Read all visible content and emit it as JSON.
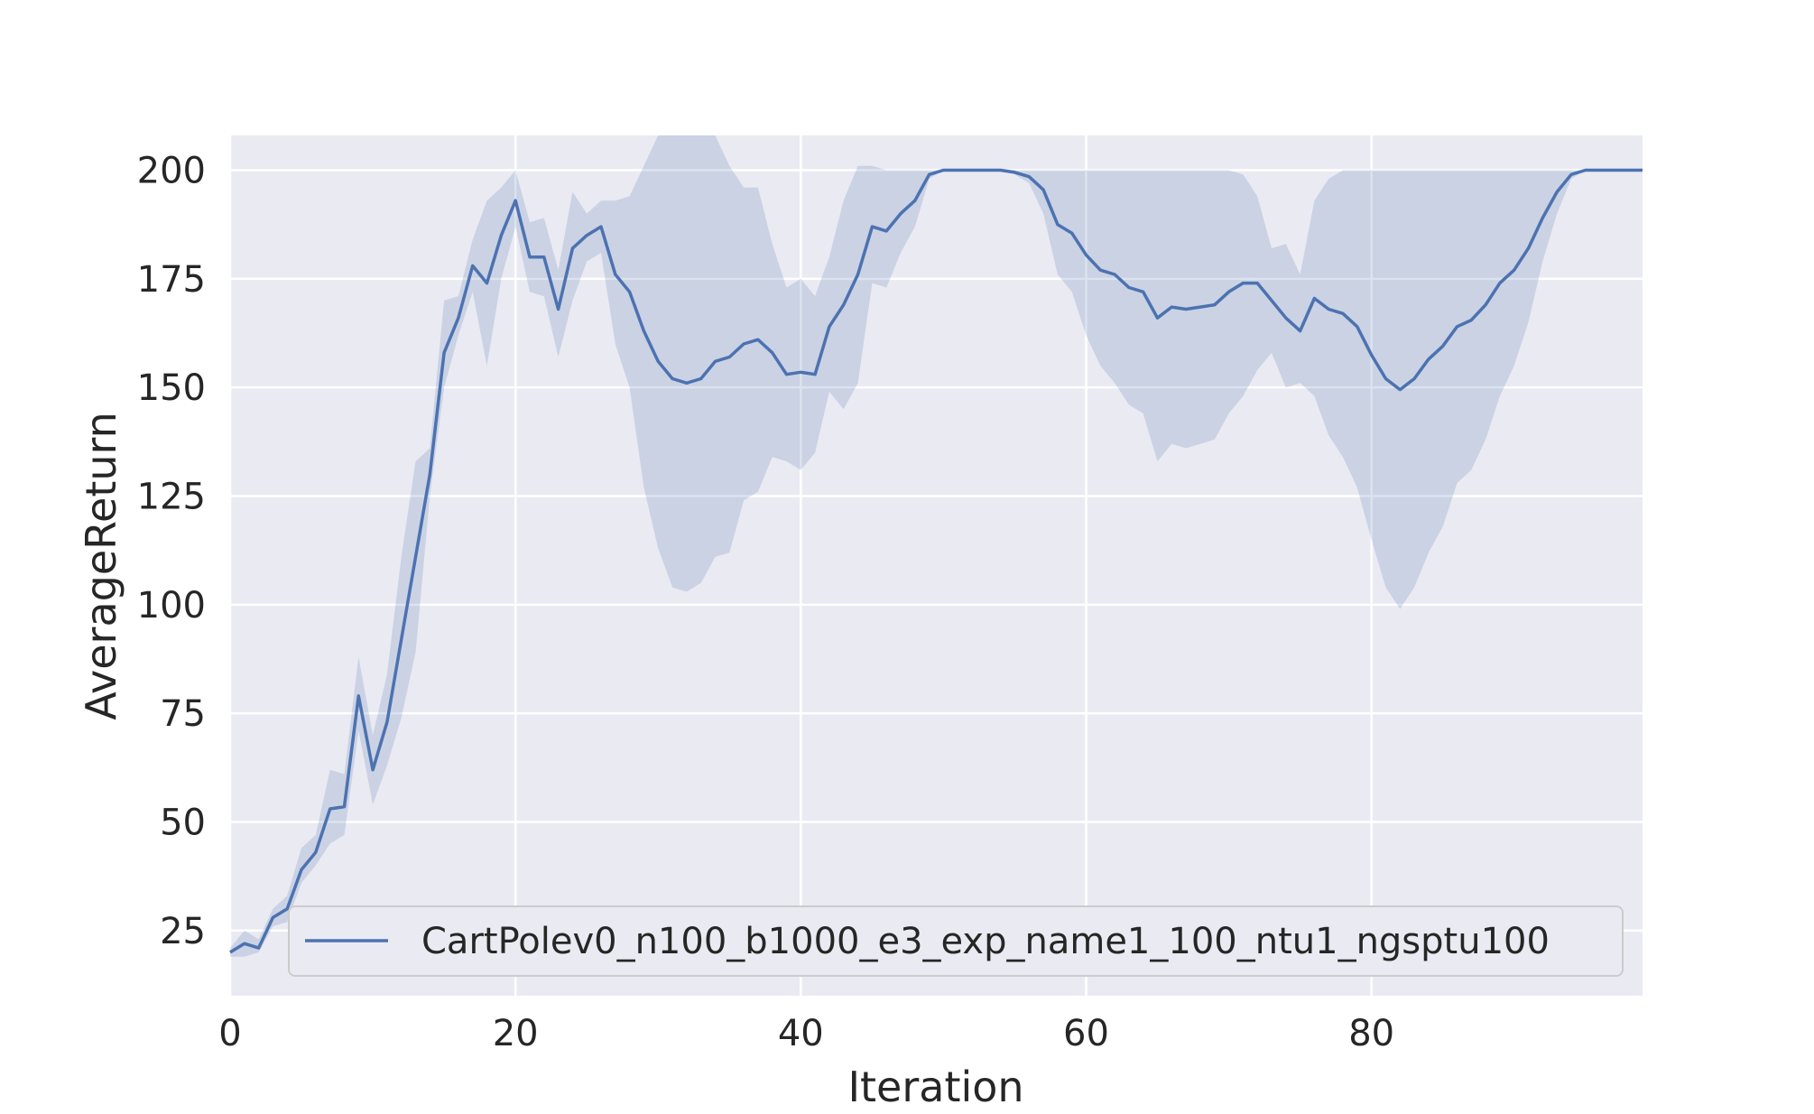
{
  "chart_data": {
    "type": "line",
    "xlabel": "Iteration",
    "ylabel": "AverageReturn",
    "xlim": [
      0,
      99
    ],
    "ylim": [
      10,
      208
    ],
    "xticks": [
      0,
      20,
      40,
      60,
      80
    ],
    "yticks": [
      25,
      50,
      75,
      100,
      125,
      150,
      175,
      200
    ],
    "grid": true,
    "legend_position": "lower-right",
    "colors": {
      "line": "#4c72b0",
      "band": "#4c72b0",
      "plot_bg": "#eaeaf2",
      "grid": "#ffffff"
    },
    "series": [
      {
        "name": "CartPolev0_n100_b1000_e3_exp_name1_100_ntu1_ngsptu100",
        "x": [
          0,
          1,
          2,
          3,
          4,
          5,
          6,
          7,
          8,
          9,
          10,
          11,
          12,
          13,
          14,
          15,
          16,
          17,
          18,
          19,
          20,
          21,
          22,
          23,
          24,
          25,
          26,
          27,
          28,
          29,
          30,
          31,
          32,
          33,
          34,
          35,
          36,
          37,
          38,
          39,
          40,
          41,
          42,
          43,
          44,
          45,
          46,
          47,
          48,
          49,
          50,
          51,
          52,
          53,
          54,
          55,
          56,
          57,
          58,
          59,
          60,
          61,
          62,
          63,
          64,
          65,
          66,
          67,
          68,
          69,
          70,
          71,
          72,
          73,
          74,
          75,
          76,
          77,
          78,
          79,
          80,
          81,
          82,
          83,
          84,
          85,
          86,
          87,
          88,
          89,
          90,
          91,
          92,
          93,
          94,
          95,
          96,
          97,
          98,
          99
        ],
        "y": [
          20,
          22,
          21,
          28,
          30,
          39,
          43,
          53,
          53.5,
          79,
          62,
          73,
          92,
          111,
          130,
          158,
          166,
          178,
          174,
          185,
          193,
          180,
          180,
          168,
          182,
          185,
          187,
          176,
          172,
          163,
          156,
          152,
          151,
          152,
          156,
          157,
          160,
          161,
          158,
          153,
          153.5,
          153,
          164,
          169,
          176,
          187,
          186,
          190,
          193,
          199,
          200,
          200,
          200,
          200,
          200,
          199.5,
          198.5,
          195.5,
          187.5,
          185.5,
          180.5,
          177,
          176,
          173,
          172,
          166,
          168.5,
          168,
          168.5,
          169,
          172,
          174,
          174,
          170,
          166,
          163,
          170.5,
          168,
          167,
          164,
          157.5,
          152,
          149.5,
          152,
          156.5,
          159.5,
          164,
          165.5,
          169,
          174,
          177,
          182,
          189,
          195,
          199,
          200,
          200,
          200,
          200,
          200
        ],
        "lower": [
          19,
          19,
          20,
          26,
          27,
          36,
          40,
          45,
          47,
          71,
          54,
          63,
          74,
          89,
          125,
          150,
          162,
          172,
          155,
          175,
          187,
          172,
          171,
          157,
          170,
          179,
          181,
          160,
          150,
          127,
          113,
          104,
          103,
          105,
          111,
          112,
          124,
          126,
          134,
          133,
          131,
          135,
          149,
          145,
          151,
          174,
          173,
          181,
          187,
          198,
          200,
          200,
          200,
          200,
          200,
          199,
          197,
          190,
          176,
          172,
          162,
          155,
          151,
          146,
          144,
          133,
          137,
          136,
          137,
          138,
          144,
          148,
          154,
          158,
          150,
          151,
          148,
          139,
          134,
          127,
          115,
          104,
          99,
          104,
          112,
          118,
          128,
          131,
          138,
          148,
          155,
          165,
          179,
          190,
          198,
          200,
          200,
          200,
          200,
          200
        ],
        "upper": [
          21,
          25,
          23,
          30,
          33,
          44,
          47,
          62,
          61,
          88,
          70,
          84,
          111,
          133,
          136,
          170,
          171,
          184,
          193,
          196,
          200,
          188,
          189,
          177,
          195,
          190,
          193,
          193,
          194,
          201,
          208,
          208,
          208,
          208,
          208,
          201,
          196,
          196,
          183,
          173,
          175,
          171,
          180,
          193,
          201,
          201,
          200,
          200,
          200,
          200,
          200,
          200,
          200,
          200,
          200,
          200,
          200,
          200,
          200,
          200,
          200,
          200,
          200,
          200,
          200,
          200,
          200,
          200,
          200,
          200,
          200,
          199,
          194,
          182,
          183,
          176,
          193,
          198,
          200,
          200,
          200,
          200,
          200,
          200,
          200,
          200,
          200,
          200,
          200,
          200,
          200,
          200,
          200,
          200,
          200,
          200,
          200,
          200,
          200,
          200
        ]
      }
    ]
  }
}
